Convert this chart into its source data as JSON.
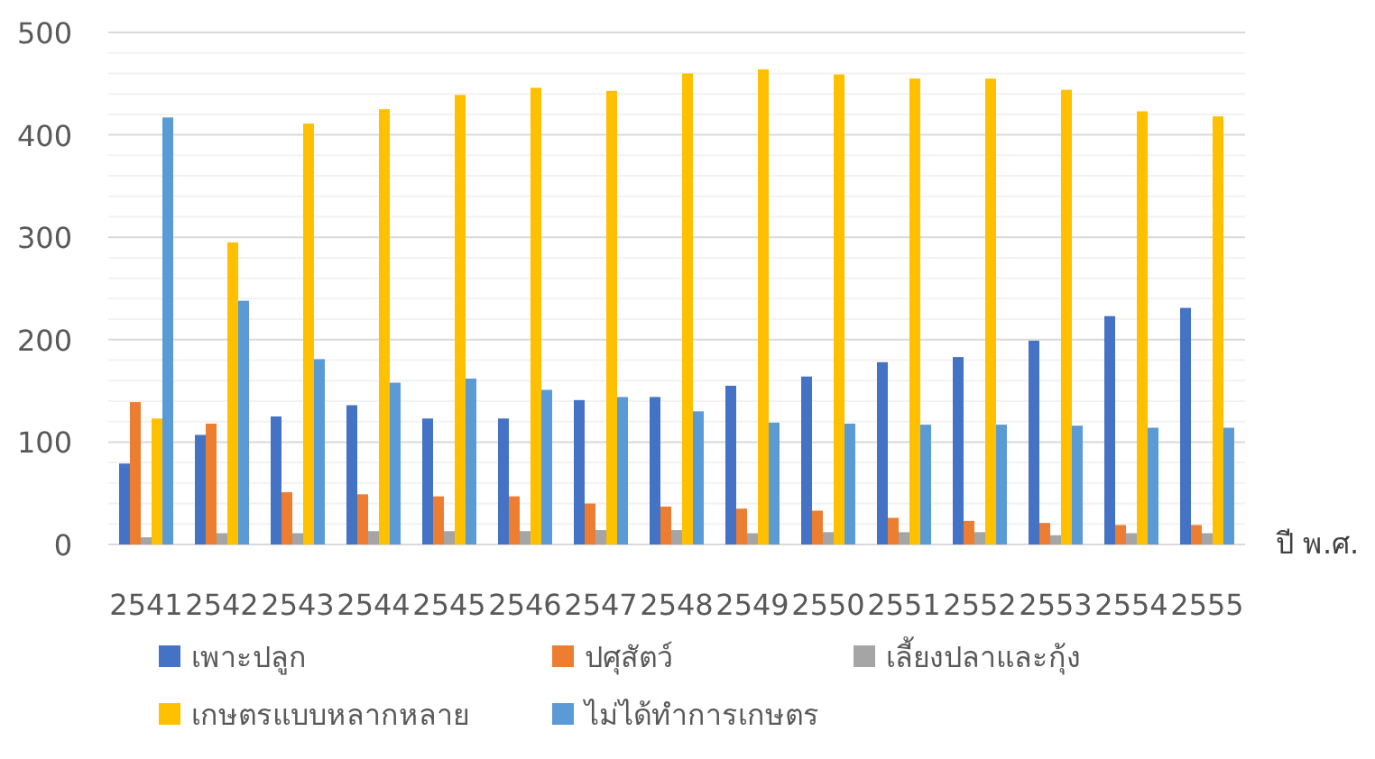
{
  "chart_data": {
    "type": "bar",
    "xlabel": "ปี พ.ศ.",
    "categories": [
      "2541",
      "2542",
      "2543",
      "2544",
      "2545",
      "2546",
      "2547",
      "2548",
      "2549",
      "2550",
      "2551",
      "2552",
      "2553",
      "2554",
      "2555"
    ],
    "series": [
      {
        "name": "เพาะปลูก",
        "color": "#4472c4",
        "values": [
          79,
          107,
          125,
          136,
          123,
          123,
          141,
          144,
          155,
          164,
          178,
          183,
          199,
          223,
          231
        ]
      },
      {
        "name": "ปศุสัตว์",
        "color": "#ed7d31",
        "values": [
          139,
          118,
          51,
          49,
          47,
          47,
          40,
          37,
          35,
          33,
          26,
          23,
          21,
          19,
          19
        ]
      },
      {
        "name": "เลี้ยงปลาและกุ้ง",
        "color": "#a5a5a5",
        "values": [
          7,
          11,
          11,
          13,
          13,
          13,
          14,
          14,
          11,
          12,
          12,
          12,
          9,
          11,
          11
        ]
      },
      {
        "name": "เกษตรแบบหลากหลาย",
        "color": "#ffc000",
        "values": [
          123,
          295,
          411,
          425,
          439,
          446,
          443,
          460,
          464,
          459,
          455,
          455,
          444,
          423,
          418
        ]
      },
      {
        "name": "ไม่ได้ทำการเกษตร",
        "color": "#5b9bd5",
        "values": [
          417,
          238,
          181,
          158,
          162,
          151,
          144,
          130,
          119,
          118,
          117,
          117,
          116,
          114,
          114
        ]
      }
    ],
    "ylim": [
      0,
      500
    ],
    "yticks": [
      0,
      {
        "value": 20,
        "label": null
      },
      {
        "value": 40,
        "label": null
      },
      {
        "value": 60,
        "label": null
      },
      {
        "value": 80,
        "label": null
      },
      100,
      {
        "value": 120,
        "label": null
      },
      {
        "value": 140,
        "label": null
      },
      {
        "value": 160,
        "label": null
      },
      {
        "value": 180,
        "label": null
      },
      200,
      {
        "value": 220,
        "label": null
      },
      {
        "value": 240,
        "label": null
      },
      {
        "value": 260,
        "label": null
      },
      {
        "value": 280,
        "label": null
      },
      300,
      {
        "value": 320,
        "label": null
      },
      {
        "value": 340,
        "label": null
      },
      {
        "value": 360,
        "label": null
      },
      {
        "value": 380,
        "label": null
      },
      400,
      {
        "value": 420,
        "label": null
      },
      {
        "value": 440,
        "label": null
      },
      {
        "value": 460,
        "label": null
      },
      {
        "value": 480,
        "label": null
      },
      500
    ],
    "grid": "y",
    "legend": "bottom"
  }
}
